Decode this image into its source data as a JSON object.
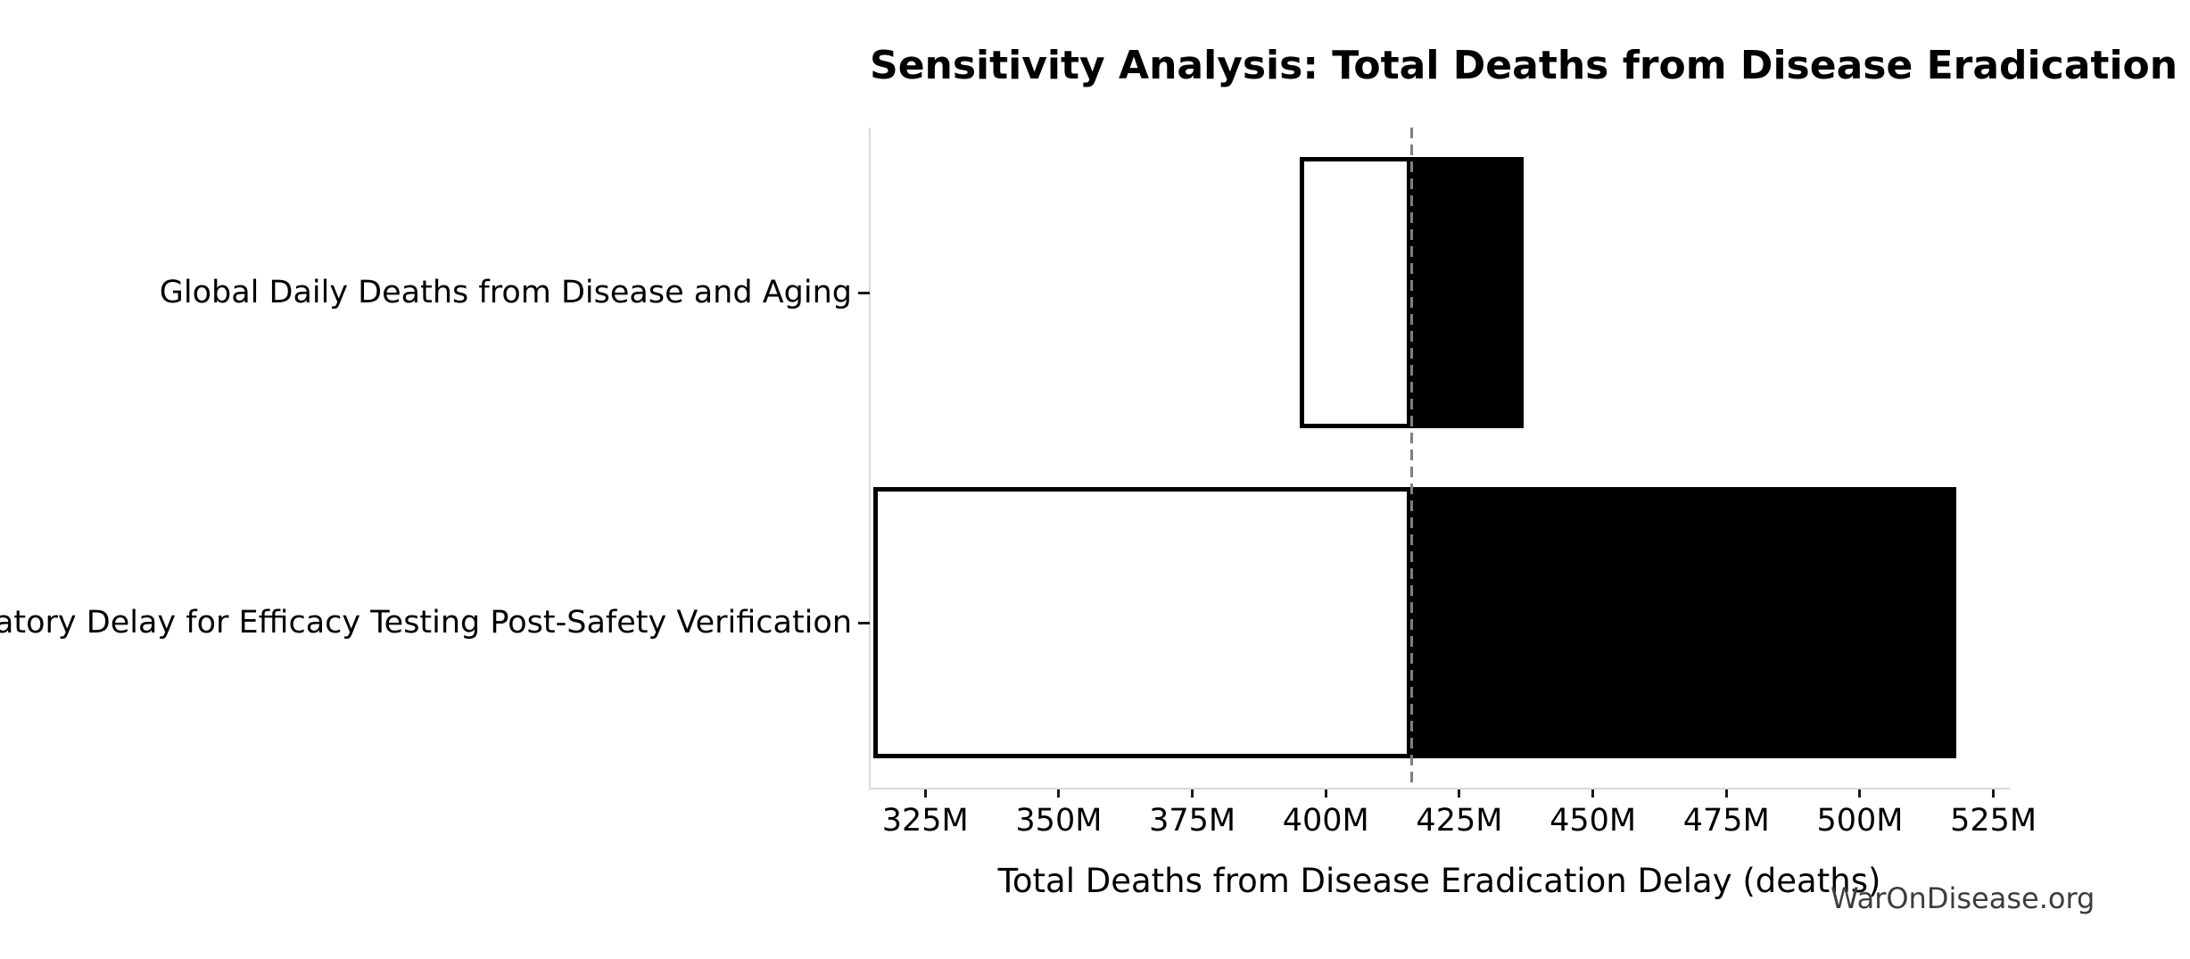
{
  "title": "Sensitivity Analysis: Total Deaths from Disease Eradication Delay",
  "watermark": "WarOnDisease.org",
  "chart_data": {
    "type": "bar",
    "variant": "tornado",
    "orientation": "horizontal",
    "title": "Sensitivity Analysis: Total Deaths from Disease Eradication Delay",
    "xlabel": "Total Deaths from Disease Eradication Delay (deaths)",
    "ylabel": "",
    "unit": "millions of deaths",
    "grid": false,
    "legend": null,
    "categories": [
      "Global Daily Deaths from Disease and Aging",
      "Regulatory Delay for Efficacy Testing Post-Safety Verification"
    ],
    "baseline": 416.0,
    "bars": [
      {
        "low": 395.1,
        "high": 437.0
      },
      {
        "low": 315.2,
        "high": 518.0
      }
    ],
    "xlim": [
      314.6,
      527.9
    ],
    "xticks": [
      {
        "value": 325,
        "label": "325M"
      },
      {
        "value": 350,
        "label": "350M"
      },
      {
        "value": 375,
        "label": "375M"
      },
      {
        "value": 400,
        "label": "400M"
      },
      {
        "value": 425,
        "label": "425M"
      },
      {
        "value": 450,
        "label": "450M"
      },
      {
        "value": 475,
        "label": "475M"
      },
      {
        "value": 500,
        "label": "500M"
      },
      {
        "value": 525,
        "label": "525M"
      }
    ],
    "colors": {
      "low_fill": "#ffffff",
      "high_fill": "#000000",
      "bar_edge": "#000000",
      "baseline_line": "#7f7f7f",
      "spine": "#d9d9d9",
      "tick": "#1a1a1a",
      "watermark": "#3d3d3d"
    }
  }
}
